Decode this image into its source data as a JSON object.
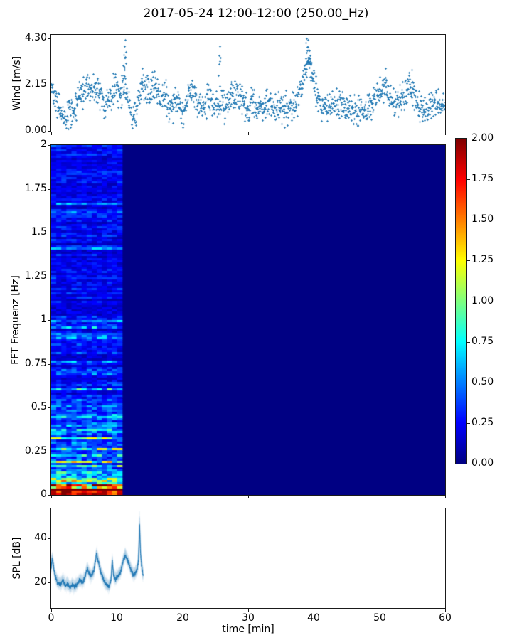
{
  "figure": {
    "title": "2017-05-24 12:00-12:00 (250.00_Hz)",
    "background": "#ffffff",
    "accent_color": "#1f77b4",
    "frame_color": "#1a1a1a"
  },
  "chart_data": [
    {
      "id": "wind",
      "type": "scatter",
      "ylabel": "Wind [m/s]",
      "xlim": [
        0,
        60
      ],
      "ylim": [
        -0.035,
        4.47
      ],
      "yticks": [
        "4.30",
        "2.15",
        "0.00"
      ],
      "ytick_values": [
        4.3,
        2.15,
        0
      ],
      "xtick_values": [
        0,
        10,
        20,
        30,
        40,
        50,
        60
      ],
      "marker": "plus",
      "color": "#1f77b4",
      "n_points": 1450,
      "noise_sd": 0.34,
      "seed": 42,
      "envelope": [
        [
          0,
          1.9
        ],
        [
          0.3,
          2.0
        ],
        [
          1,
          1.1
        ],
        [
          1.5,
          0.8
        ],
        [
          2.5,
          0.7
        ],
        [
          3.5,
          1.1
        ],
        [
          4.5,
          1.6
        ],
        [
          5.3,
          2.2
        ],
        [
          6,
          1.9
        ],
        [
          6.4,
          2.1
        ],
        [
          7,
          1.6
        ],
        [
          7.5,
          1.8
        ],
        [
          8.2,
          1.0
        ],
        [
          9,
          1.6
        ],
        [
          9.8,
          2.1
        ],
        [
          10.5,
          1.7
        ],
        [
          11.1,
          2.2
        ],
        [
          11.5,
          1.7
        ],
        [
          12,
          0.9
        ],
        [
          12.4,
          0.55
        ],
        [
          12.8,
          0.8
        ],
        [
          13.3,
          1.4
        ],
        [
          13.8,
          2.2
        ],
        [
          14.2,
          2.0
        ],
        [
          15,
          1.6
        ],
        [
          15.7,
          2.3
        ],
        [
          16.2,
          1.9
        ],
        [
          16.8,
          1.4
        ],
        [
          17.4,
          1.8
        ],
        [
          18,
          1.1
        ],
        [
          18.6,
          1.2
        ],
        [
          19.2,
          1.5
        ],
        [
          20,
          0.85
        ],
        [
          20.7,
          1.4
        ],
        [
          21.2,
          2.1
        ],
        [
          22,
          1.5
        ],
        [
          22.6,
          1.2
        ],
        [
          23.2,
          1.0
        ],
        [
          24,
          1.7
        ],
        [
          24.6,
          1.4
        ],
        [
          25.2,
          1.1
        ],
        [
          25.8,
          1.5
        ],
        [
          26.4,
          1.1
        ],
        [
          27.2,
          1.5
        ],
        [
          28,
          1.9
        ],
        [
          28.6,
          1.6
        ],
        [
          29.2,
          1.2
        ],
        [
          30,
          1.0
        ],
        [
          30.6,
          1.4
        ],
        [
          31.4,
          1.1
        ],
        [
          32.2,
          1.1
        ],
        [
          33,
          1.4
        ],
        [
          33.8,
          1.0
        ],
        [
          34.6,
          1.2
        ],
        [
          35.4,
          1.1
        ],
        [
          36.2,
          1.0
        ],
        [
          37,
          1.2
        ],
        [
          37.8,
          1.7
        ],
        [
          38.4,
          2.4
        ],
        [
          38.9,
          3.1
        ],
        [
          39.3,
          3.2
        ],
        [
          39.7,
          2.6
        ],
        [
          40.2,
          1.9
        ],
        [
          40.8,
          1.3
        ],
        [
          41.6,
          1.2
        ],
        [
          42.4,
          1.1
        ],
        [
          43.2,
          1.3
        ],
        [
          44,
          1.3
        ],
        [
          44.8,
          1.0
        ],
        [
          45.6,
          1.0
        ],
        [
          46.4,
          0.8
        ],
        [
          47.2,
          1.1
        ],
        [
          48,
          0.9
        ],
        [
          48.8,
          1.2
        ],
        [
          49.6,
          1.6
        ],
        [
          50.4,
          2.0
        ],
        [
          51,
          1.9
        ],
        [
          51.8,
          1.5
        ],
        [
          52.6,
          1.4
        ],
        [
          53.4,
          1.5
        ],
        [
          54.2,
          2.0
        ],
        [
          54.8,
          1.9
        ],
        [
          55.5,
          1.5
        ],
        [
          56.2,
          1.0
        ],
        [
          57,
          0.9
        ],
        [
          57.8,
          1.2
        ],
        [
          58.6,
          1.3
        ],
        [
          59.3,
          1.2
        ],
        [
          60,
          1.3
        ]
      ],
      "peaks": [
        [
          11.1,
          3.55
        ],
        [
          11.18,
          3.95
        ],
        [
          11.22,
          4.25
        ],
        [
          11.3,
          3.4
        ],
        [
          13.85,
          2.9
        ],
        [
          25.55,
          3.5
        ],
        [
          25.65,
          3.95
        ],
        [
          38.82,
          4.1
        ],
        [
          38.9,
          4.3
        ],
        [
          39.0,
          3.9
        ],
        [
          39.15,
          4.25
        ],
        [
          39.3,
          3.75
        ],
        [
          39.45,
          3.5
        ],
        [
          50.9,
          2.9
        ],
        [
          54.9,
          2.85
        ]
      ]
    },
    {
      "id": "spectrogram",
      "type": "heatmap",
      "ylabel": "FFT Frequenz [Hz]",
      "xlim": [
        0,
        60
      ],
      "ylim": [
        0,
        2
      ],
      "yticks": [
        "2",
        "1.75",
        "1.5",
        "1.25",
        "1",
        "0.75",
        "0.5",
        "0.25",
        "0"
      ],
      "ytick_values": [
        2,
        1.75,
        1.5,
        1.25,
        1,
        0.75,
        0.5,
        0.25,
        0
      ],
      "xtick_values": [
        0,
        10,
        20,
        30,
        40,
        50,
        60
      ],
      "clim": [
        0,
        2
      ],
      "colormap": "jet",
      "colormap_stops": [
        [
          0.0,
          0,
          0,
          131
        ],
        [
          0.125,
          0,
          0,
          255
        ],
        [
          0.375,
          0,
          255,
          255
        ],
        [
          0.625,
          255,
          255,
          0
        ],
        [
          0.875,
          255,
          0,
          0
        ],
        [
          1.0,
          128,
          0,
          0
        ]
      ],
      "data_end_min": 10.8,
      "background_value": 0,
      "freq_bins": 164,
      "time_bins": 14,
      "seed": 7,
      "base_profile": [
        [
          0.0,
          1.7
        ],
        [
          0.012,
          2.0
        ],
        [
          0.02,
          1.5
        ],
        [
          0.03,
          1.8
        ],
        [
          0.04,
          1.1
        ],
        [
          0.05,
          1.3
        ],
        [
          0.06,
          0.95
        ],
        [
          0.08,
          0.85
        ],
        [
          0.1,
          0.8
        ],
        [
          0.12,
          0.6
        ],
        [
          0.15,
          0.55
        ],
        [
          0.18,
          0.5
        ],
        [
          0.22,
          0.42
        ],
        [
          0.28,
          0.38
        ],
        [
          0.35,
          0.4
        ],
        [
          0.42,
          0.48
        ],
        [
          0.5,
          0.32
        ],
        [
          0.6,
          0.28
        ],
        [
          0.75,
          0.26
        ],
        [
          0.9,
          0.24
        ],
        [
          1.1,
          0.22
        ],
        [
          1.3,
          0.22
        ],
        [
          1.5,
          0.21
        ],
        [
          1.75,
          0.22
        ],
        [
          2.0,
          0.2
        ]
      ],
      "streak_prob": 0.07,
      "streak_gain": [
        1.6,
        2.4
      ],
      "row_gain": [
        0.6,
        1.45
      ],
      "cell_noise": [
        0.5,
        1.5
      ],
      "colorbar": {
        "ticks": [
          "2.00",
          "1.75",
          "1.50",
          "1.25",
          "1.00",
          "0.75",
          "0.50",
          "0.25",
          "0.00"
        ],
        "tick_values": [
          2,
          1.75,
          1.5,
          1.25,
          1,
          0.75,
          0.5,
          0.25,
          0
        ]
      }
    },
    {
      "id": "spl",
      "type": "line",
      "ylabel": "SPL [dB]",
      "xlabel": "time [min]",
      "xlim": [
        0,
        60
      ],
      "ylim": [
        8.4,
        53.5
      ],
      "yticks": [
        "40",
        "20"
      ],
      "ytick_values": [
        40,
        20
      ],
      "xticks": [
        "0",
        "10",
        "20",
        "30",
        "40",
        "50",
        "60"
      ],
      "xtick_values": [
        0,
        10,
        20,
        30,
        40,
        50,
        60
      ],
      "color": "#1f77b4",
      "x_end": 14,
      "seed": 3,
      "n_band_traces": 12,
      "band_alpha": 0.08,
      "noise_sd": 1.3,
      "envelope": [
        [
          0,
          26
        ],
        [
          0.15,
          31
        ],
        [
          0.5,
          24
        ],
        [
          0.9,
          20
        ],
        [
          1.4,
          19
        ],
        [
          1.8,
          21
        ],
        [
          2.1,
          18.5
        ],
        [
          2.5,
          19.5
        ],
        [
          2.9,
          17.5
        ],
        [
          3.2,
          19
        ],
        [
          3.6,
          18
        ],
        [
          4.0,
          19.5
        ],
        [
          4.4,
          21
        ],
        [
          4.8,
          20
        ],
        [
          5.1,
          22
        ],
        [
          5.5,
          26
        ],
        [
          5.8,
          24
        ],
        [
          6.1,
          23
        ],
        [
          6.5,
          25
        ],
        [
          6.9,
          33
        ],
        [
          7.2,
          29
        ],
        [
          7.6,
          24
        ],
        [
          8.0,
          21
        ],
        [
          8.4,
          19
        ],
        [
          8.8,
          18
        ],
        [
          9.1,
          21
        ],
        [
          9.3,
          30
        ],
        [
          9.5,
          23
        ],
        [
          9.8,
          21.5
        ],
        [
          10.2,
          23
        ],
        [
          10.6,
          25
        ],
        [
          11.0,
          30
        ],
        [
          11.3,
          32.5
        ],
        [
          11.6,
          30
        ],
        [
          11.9,
          28
        ],
        [
          12.2,
          25
        ],
        [
          12.5,
          23.5
        ],
        [
          12.8,
          24
        ],
        [
          13.1,
          26
        ],
        [
          13.3,
          30
        ],
        [
          13.45,
          47
        ],
        [
          13.6,
          33
        ],
        [
          13.75,
          28
        ],
        [
          13.9,
          25
        ],
        [
          14,
          23
        ]
      ],
      "band_halfwidth": [
        [
          0,
          2.5
        ],
        [
          13,
          2.5
        ],
        [
          13.45,
          5.5
        ],
        [
          14,
          3
        ]
      ]
    }
  ]
}
